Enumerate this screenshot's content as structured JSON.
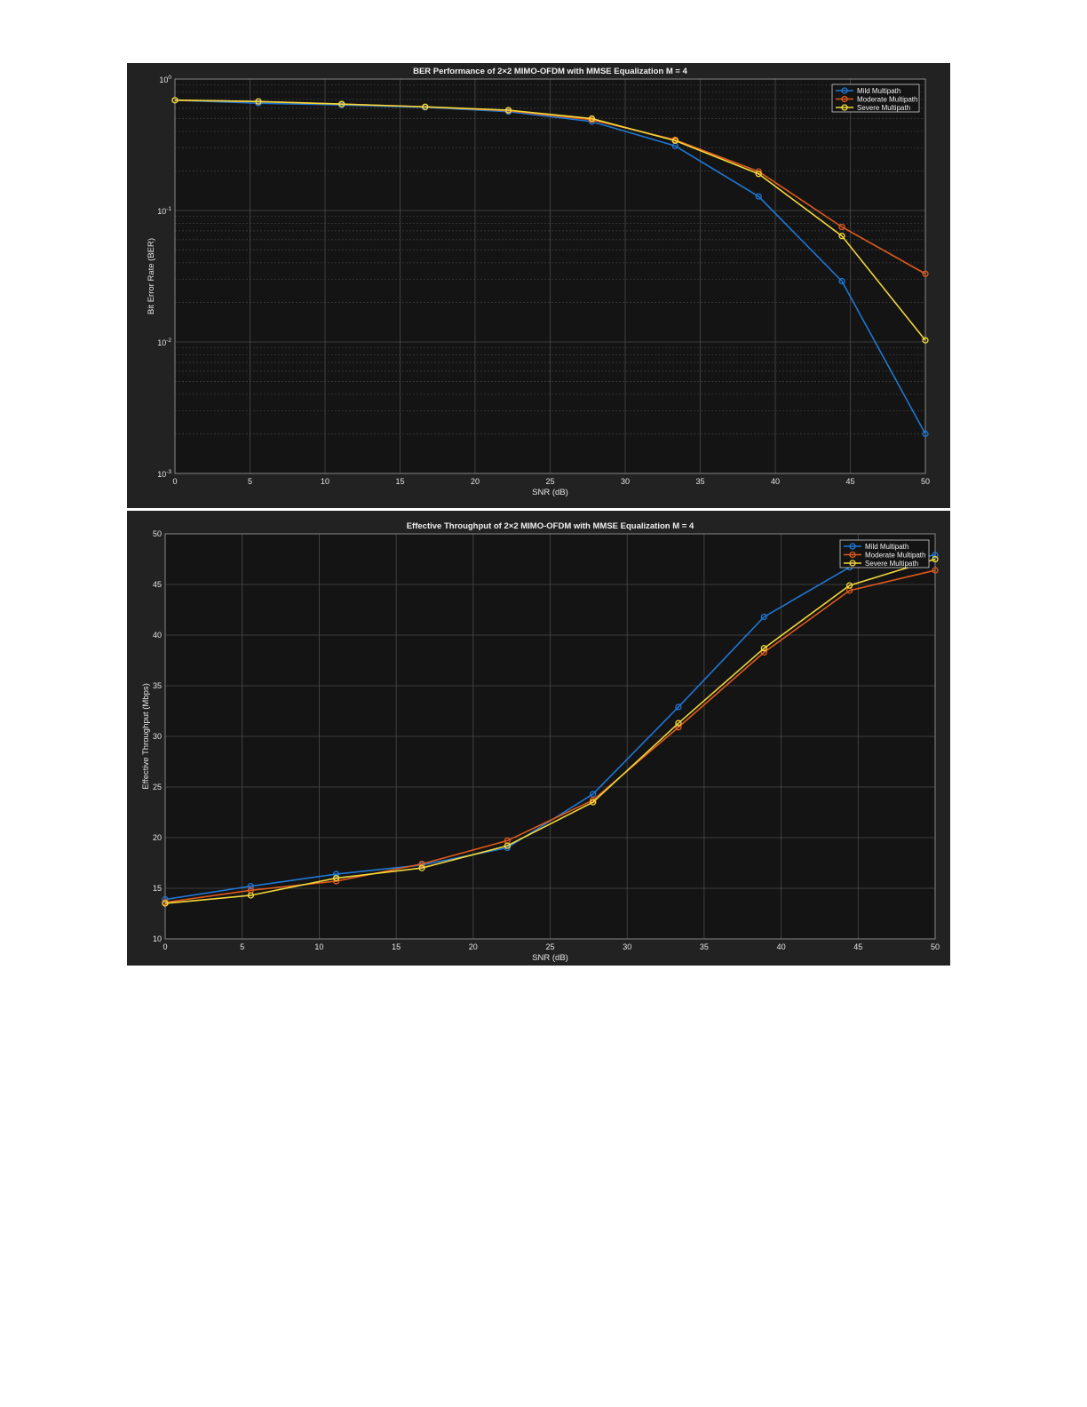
{
  "chart_data": [
    {
      "type": "line",
      "title": "BER Performance of 2×2 MIMO-OFDM with MMSE Equalization M = 4",
      "xlabel": "SNR (dB)",
      "ylabel": "Bit Error Rate (BER)",
      "xlim": [
        0,
        50
      ],
      "ylim": [
        0.001,
        1
      ],
      "yscale": "log",
      "grid": true,
      "legend_position": "top-right",
      "xticks": [
        "0",
        "5",
        "10",
        "15",
        "20",
        "25",
        "30",
        "35",
        "40",
        "45",
        "50"
      ],
      "yticks": [
        {
          "base": "10",
          "exp": "0"
        },
        {
          "base": "10",
          "exp": "-1"
        },
        {
          "base": "10",
          "exp": "-2"
        },
        {
          "base": "10",
          "exp": "-3"
        }
      ],
      "x": [
        0,
        5.56,
        11.11,
        16.67,
        22.22,
        27.78,
        33.33,
        38.89,
        44.44,
        50
      ],
      "series": [
        {
          "name": "Mild Multipath",
          "color": "#1f77d4",
          "values": [
            0.69,
            0.655,
            0.635,
            0.61,
            0.565,
            0.475,
            0.31,
            0.128,
            0.029,
            0.002
          ]
        },
        {
          "name": "Moderate Multipath",
          "color": "#e05a1c",
          "values": [
            0.69,
            0.675,
            0.645,
            0.615,
            0.575,
            0.49,
            0.345,
            0.198,
            0.075,
            0.033
          ]
        },
        {
          "name": "Severe Multipath",
          "color": "#f2d83a",
          "values": [
            0.69,
            0.675,
            0.645,
            0.615,
            0.58,
            0.5,
            0.34,
            0.19,
            0.064,
            0.0103
          ]
        }
      ]
    },
    {
      "type": "line",
      "title": "Effective Throughput of 2×2 MIMO-OFDM with MMSE Equalization M = 4",
      "xlabel": "SNR (dB)",
      "ylabel": "Effective Throughput (Mbps)",
      "xlim": [
        0,
        50
      ],
      "ylim": [
        10,
        50
      ],
      "grid": true,
      "legend_position": "top-right",
      "xticks": [
        "0",
        "5",
        "10",
        "15",
        "20",
        "25",
        "30",
        "35",
        "40",
        "45",
        "50"
      ],
      "yticks": [
        "10",
        "15",
        "20",
        "25",
        "30",
        "35",
        "40",
        "45",
        "50"
      ],
      "x": [
        0,
        5.56,
        11.11,
        16.67,
        22.22,
        27.78,
        33.33,
        38.89,
        44.44,
        50
      ],
      "series": [
        {
          "name": "Mild Multipath",
          "color": "#1f77d4",
          "values": [
            13.9,
            15.2,
            16.4,
            17.3,
            19.0,
            24.3,
            32.9,
            41.8,
            46.7,
            47.9
          ]
        },
        {
          "name": "Moderate Multipath",
          "color": "#e05a1c",
          "values": [
            13.6,
            14.8,
            15.7,
            17.4,
            19.7,
            23.7,
            30.9,
            38.3,
            44.4,
            46.4
          ]
        },
        {
          "name": "Severe Multipath",
          "color": "#f2d83a",
          "values": [
            13.5,
            14.3,
            16.0,
            17.0,
            19.2,
            23.5,
            31.3,
            38.7,
            44.9,
            47.5
          ]
        }
      ]
    }
  ]
}
